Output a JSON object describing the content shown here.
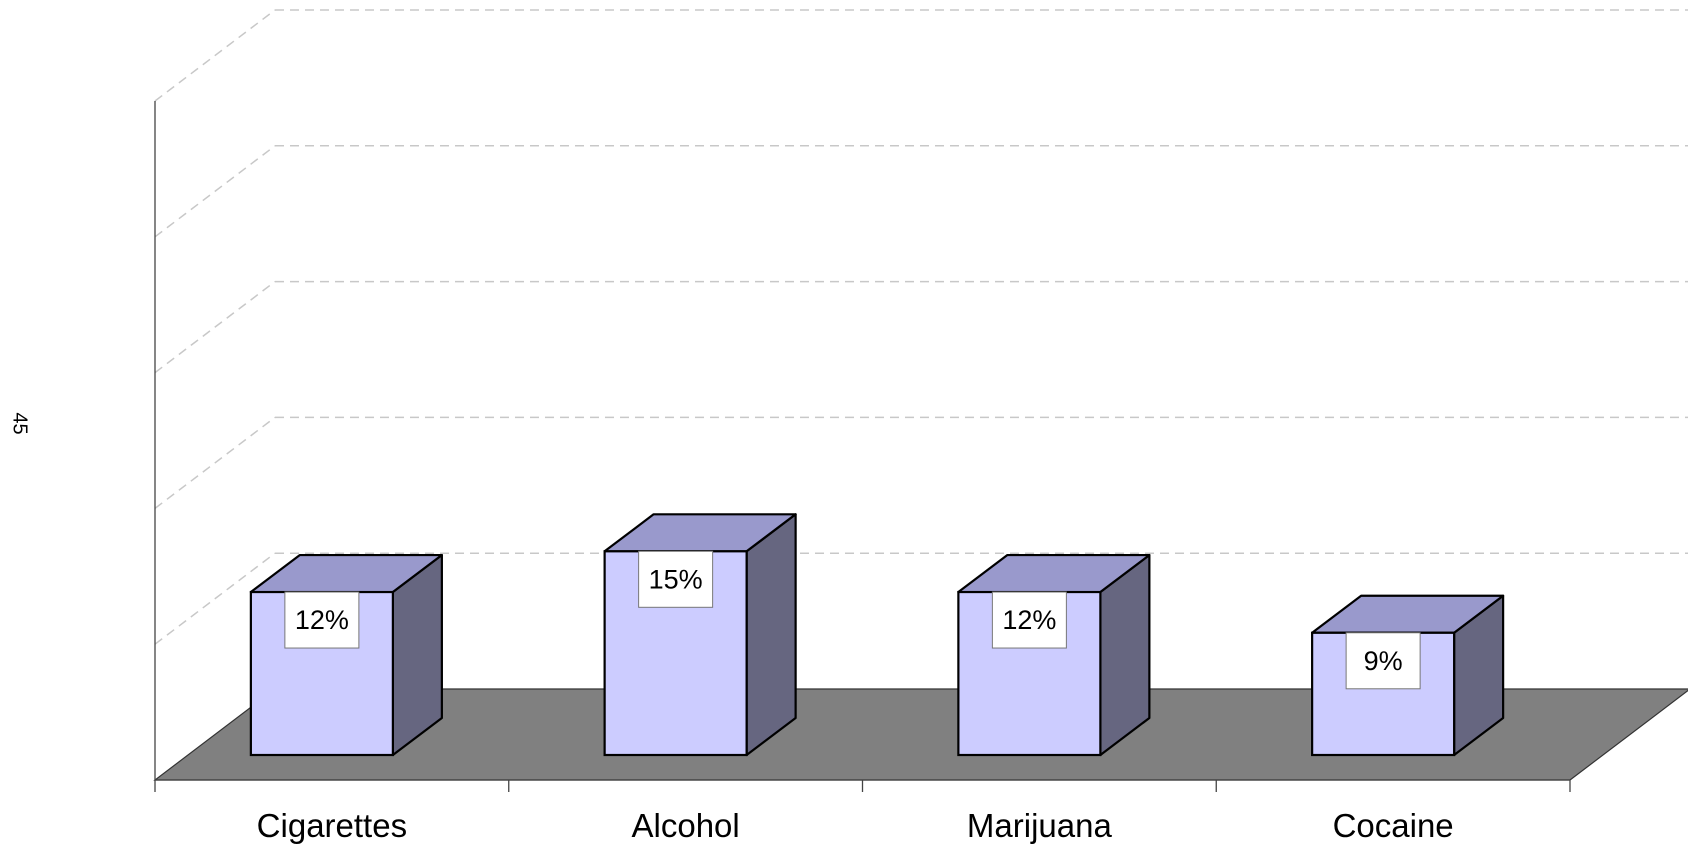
{
  "page_number": "45",
  "chart_data": {
    "type": "bar",
    "style": "3d-column",
    "categories": [
      "Cigarettes",
      "Alcohol",
      "Marijuana",
      "Cocaine"
    ],
    "values": [
      12,
      15,
      12,
      9
    ],
    "value_labels": [
      "12%",
      "15%",
      "12%",
      "9%"
    ],
    "ylim": [
      0,
      50
    ],
    "y_major_step": 10,
    "grid": true,
    "legend": "none",
    "colors": {
      "bar_front": "#CCCCFF",
      "bar_top": "#9999CC",
      "bar_side": "#666680",
      "floor": "#808080",
      "gridline": "#C8C8C8"
    }
  }
}
